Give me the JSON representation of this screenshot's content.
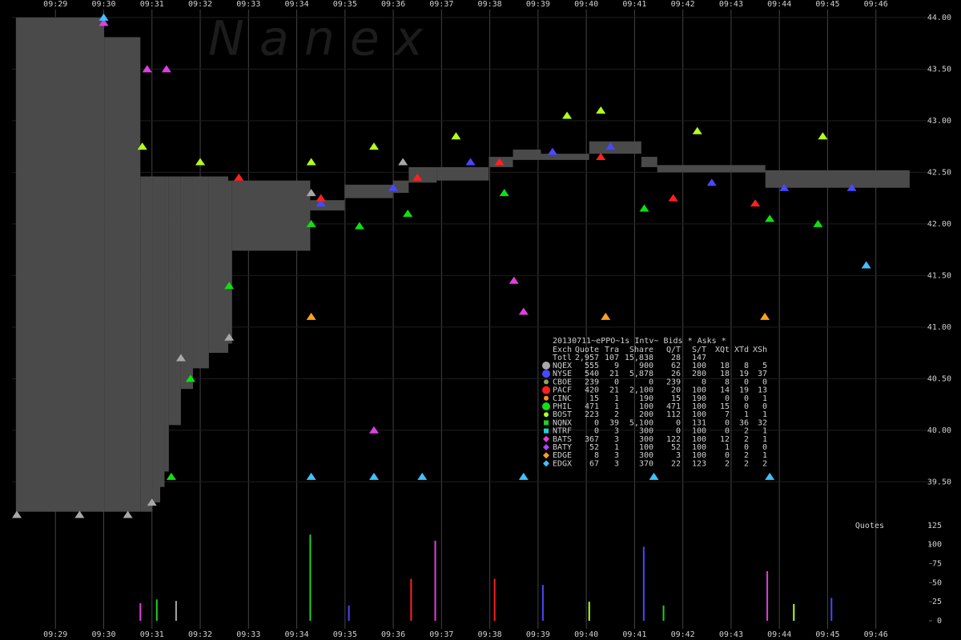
{
  "watermark": "N a n e x",
  "chart_data": [
    {
      "type": "montage",
      "xlim": [
        568.1,
        587.1
      ],
      "xticks": [
        {
          "value": 569,
          "label": "09:29"
        },
        {
          "value": 570,
          "label": "09:30"
        },
        {
          "value": 571,
          "label": "09:31"
        },
        {
          "value": 572,
          "label": "09:32"
        },
        {
          "value": 573,
          "label": "09:33"
        },
        {
          "value": 574,
          "label": "09:34"
        },
        {
          "value": 575,
          "label": "09:35"
        },
        {
          "value": 576,
          "label": "09:36"
        },
        {
          "value": 577,
          "label": "09:37"
        },
        {
          "value": 578,
          "label": "09:38"
        },
        {
          "value": 579,
          "label": "09:39"
        },
        {
          "value": 580,
          "label": "09:40"
        },
        {
          "value": 581,
          "label": "09:41"
        },
        {
          "value": 582,
          "label": "09:42"
        },
        {
          "value": 583,
          "label": "09:43"
        },
        {
          "value": 584,
          "label": "09:44"
        },
        {
          "value": 585,
          "label": "09:45"
        },
        {
          "value": 586,
          "label": "09:46"
        }
      ],
      "ylim": [
        39.13,
        44.17
      ],
      "yticks": [
        {
          "value": 39.5,
          "label": "39.50"
        },
        {
          "value": 40,
          "label": "40.00"
        },
        {
          "value": 40.5,
          "label": "40.50"
        },
        {
          "value": 41,
          "label": "41.00"
        },
        {
          "value": 41.5,
          "label": "41.50"
        },
        {
          "value": 42,
          "label": "42.00"
        },
        {
          "value": 42.5,
          "label": "42.50"
        },
        {
          "value": 43,
          "label": "43.00"
        },
        {
          "value": 43.5,
          "label": "43.50"
        },
        {
          "value": 44,
          "label": "44.00"
        }
      ],
      "grid": true,
      "nbbo": {
        "color": "#4a4a4a",
        "x": [
          568.18,
          570.01,
          570.76,
          571.01,
          571.17,
          571.26,
          571.35,
          571.6,
          571.85,
          572.18,
          572.58,
          572.66,
          574.28,
          574.99,
          575.99,
          576.32,
          576.9,
          577.98,
          578.48,
          579.06,
          580.06,
          581.14,
          581.47,
          583.71,
          586.7
        ],
        "bid": [
          39.21,
          39.21,
          39.21,
          39.3,
          39.45,
          39.6,
          40.05,
          40.4,
          40.6,
          40.75,
          40.84,
          41.74,
          42.13,
          42.25,
          42.3,
          42.4,
          42.42,
          42.55,
          42.62,
          42.62,
          42.68,
          42.55,
          42.5,
          42.35,
          42.35
        ],
        "ask": [
          44.0,
          43.81,
          42.46,
          42.46,
          42.46,
          42.46,
          42.46,
          42.46,
          42.46,
          42.46,
          42.42,
          42.42,
          42.23,
          42.38,
          42.42,
          42.55,
          42.55,
          42.65,
          42.72,
          42.68,
          42.8,
          42.65,
          42.57,
          42.52,
          42.52
        ]
      },
      "table_title": "20130711~ePPO~1s Intv~ Bids * Asks *",
      "table_header": [
        "Exch",
        "Quote",
        "Tra",
        "Share",
        "Q/T",
        "S/T",
        "XQt",
        "XTd",
        "XSh"
      ],
      "totals": [
        "Totl",
        "2,957",
        "107",
        "15,838",
        "28",
        "147"
      ],
      "series": [
        {
          "name": "NQEX",
          "color": "#a8a8a8",
          "marker": "circle",
          "stats": [
            "555",
            "9",
            "900",
            "62",
            "100",
            "18",
            "8",
            "5"
          ],
          "x": [
            568.2,
            569.5,
            570.5,
            571.0,
            571.6,
            572.6,
            574.3,
            576.2
          ],
          "values": [
            39.18,
            39.18,
            39.18,
            39.3,
            40.7,
            40.9,
            42.3,
            42.6
          ]
        },
        {
          "name": "NYSE",
          "color": "#4848ff",
          "marker": "circle",
          "stats": [
            "540",
            "21",
            "5,878",
            "26",
            "280",
            "18",
            "19",
            "37"
          ],
          "x": [
            574.5,
            576.0,
            577.6,
            579.3,
            580.5,
            582.6,
            584.1,
            585.5
          ],
          "values": [
            42.2,
            42.35,
            42.6,
            42.7,
            42.75,
            42.4,
            42.35,
            42.35
          ]
        },
        {
          "name": "CBOE",
          "color": "#9aa060",
          "marker": "dot",
          "stats": [
            "239",
            "0",
            "0",
            "239",
            "0",
            "8",
            "0",
            "0"
          ],
          "x": [],
          "values": []
        },
        {
          "name": "PACF",
          "color": "#ff2020",
          "marker": "circle",
          "stats": [
            "420",
            "21",
            "2,100",
            "20",
            "100",
            "14",
            "19",
            "13"
          ],
          "x": [
            572.8,
            574.5,
            576.5,
            578.2,
            580.3,
            581.8,
            583.5
          ],
          "values": [
            42.45,
            42.25,
            42.45,
            42.6,
            42.65,
            42.25,
            42.2
          ]
        },
        {
          "name": "CINC",
          "color": "#ff9020",
          "marker": "dot",
          "stats": [
            "15",
            "1",
            "190",
            "15",
            "190",
            "0",
            "0",
            "1"
          ],
          "x": [],
          "values": []
        },
        {
          "name": "PHIL",
          "color": "#10e010",
          "marker": "circle",
          "stats": [
            "471",
            "1",
            "100",
            "471",
            "100",
            "15",
            "0",
            "0"
          ],
          "x": [
            571.4,
            571.8,
            572.6,
            574.3,
            575.3,
            576.3,
            578.3,
            581.2,
            583.8,
            584.8
          ],
          "values": [
            39.55,
            40.5,
            41.4,
            42.0,
            41.98,
            42.1,
            42.3,
            42.15,
            42.05,
            42.0
          ]
        },
        {
          "name": "BOST",
          "color": "#b0ff20",
          "marker": "dot",
          "stats": [
            "223",
            "2",
            "200",
            "112",
            "100",
            "7",
            "1",
            "1"
          ],
          "x": [
            570.8,
            572.0,
            574.3,
            575.6,
            577.3,
            579.6,
            580.3,
            582.3,
            584.9
          ],
          "values": [
            42.75,
            42.6,
            42.6,
            42.75,
            42.85,
            43.05,
            43.1,
            42.9,
            42.85
          ]
        },
        {
          "name": "NQNX",
          "color": "#20d020",
          "marker": "square",
          "stats": [
            "0",
            "39",
            "5,100",
            "0",
            "131",
            "0",
            "36",
            "32"
          ],
          "x": [],
          "values": []
        },
        {
          "name": "NTRF",
          "color": "#20d0d0",
          "marker": "square",
          "stats": [
            "0",
            "3",
            "300",
            "0",
            "100",
            "0",
            "2",
            "1"
          ],
          "x": [],
          "values": []
        },
        {
          "name": "BATS",
          "color": "#e040e0",
          "marker": "diamond",
          "stats": [
            "367",
            "3",
            "300",
            "122",
            "100",
            "12",
            "2",
            "1"
          ],
          "x": [
            570.0,
            570.9,
            571.3,
            575.6,
            578.5,
            578.7
          ],
          "values": [
            43.95,
            43.5,
            43.5,
            40.0,
            41.45,
            41.15
          ]
        },
        {
          "name": "BATY",
          "color": "#b040ff",
          "marker": "diamond",
          "stats": [
            "52",
            "1",
            "100",
            "52",
            "100",
            "1",
            "0",
            "0"
          ],
          "x": [],
          "values": []
        },
        {
          "name": "EDGE",
          "color": "#ffa020",
          "marker": "diamond",
          "stats": [
            "8",
            "3",
            "300",
            "3",
            "100",
            "0",
            "2",
            "1"
          ],
          "x": [
            574.3,
            580.4,
            583.7
          ],
          "values": [
            41.1,
            41.1,
            41.1
          ]
        },
        {
          "name": "EDGX",
          "color": "#40c0ff",
          "marker": "diamond",
          "stats": [
            "67",
            "3",
            "370",
            "22",
            "123",
            "2",
            "2",
            "2"
          ],
          "x": [
            570.0,
            574.3,
            575.6,
            576.6,
            578.7,
            581.4,
            583.8,
            585.8
          ],
          "values": [
            44.0,
            39.55,
            39.55,
            39.55,
            39.55,
            39.55,
            39.55,
            41.6
          ]
        }
      ]
    },
    {
      "type": "bar",
      "label": "Quotes",
      "xlim": [
        568.1,
        587.1
      ],
      "ylim": [
        0,
        130
      ],
      "yticks": [
        0,
        25,
        50,
        75,
        100,
        125
      ],
      "x": [
        570.76,
        571.1,
        571.5,
        574.28,
        575.08,
        576.37,
        576.87,
        578.1,
        579.1,
        580.06,
        581.19,
        581.6,
        583.75,
        584.3,
        585.08
      ],
      "values": [
        23,
        28,
        26,
        113,
        20,
        55,
        105,
        55,
        47,
        25,
        97,
        20,
        65,
        22,
        30
      ],
      "colors": [
        "#e040e0",
        "#20d020",
        "#a8a8a8",
        "#20d020",
        "#4848ff",
        "#ff2020",
        "#e040e0",
        "#ff2020",
        "#4848ff",
        "#b0ff20",
        "#4848ff",
        "#20d020",
        "#e040e0",
        "#b0ff20",
        "#4848ff"
      ]
    }
  ]
}
